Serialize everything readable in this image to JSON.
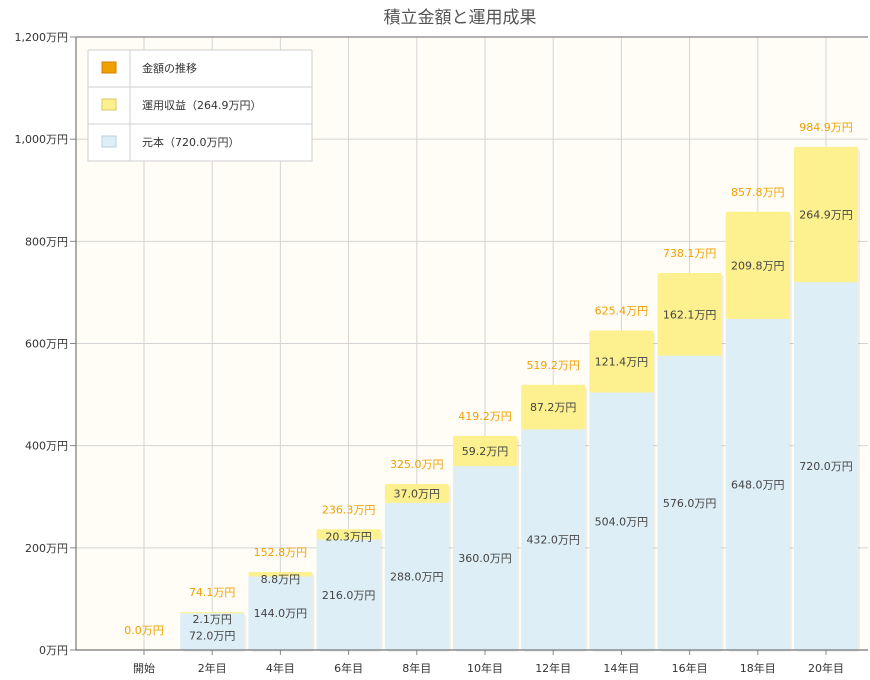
{
  "chart_data": {
    "type": "bar",
    "stacked": true,
    "title": "積立金額と運用成果",
    "categories": [
      "開始",
      "2年目",
      "4年目",
      "6年目",
      "8年目",
      "10年目",
      "12年目",
      "14年目",
      "16年目",
      "18年目",
      "20年目"
    ],
    "series": [
      {
        "name": "元本",
        "color": "#ddeef6",
        "values": [
          0,
          72.0,
          144.0,
          216.0,
          288.0,
          360.0,
          432.0,
          504.0,
          576.0,
          648.0,
          720.0
        ],
        "labels": [
          "",
          "72.0万円",
          "144.0万円",
          "216.0万円",
          "288.0万円",
          "360.0万円",
          "432.0万円",
          "504.0万円",
          "576.0万円",
          "648.0万円",
          "720.0万円"
        ]
      },
      {
        "name": "運用収益",
        "color": "#fdf08e",
        "values": [
          0,
          2.1,
          8.8,
          20.3,
          37.0,
          59.2,
          87.2,
          121.4,
          162.1,
          209.8,
          264.9
        ],
        "labels": [
          "",
          "2.1万円",
          "8.8万円",
          "20.3万円",
          "37.0万円",
          "59.2万円",
          "87.2万円",
          "121.4万円",
          "162.1万円",
          "209.8万円",
          "264.9万円"
        ]
      }
    ],
    "totals": {
      "name": "金額の推移",
      "color": "#f0a000",
      "labels": [
        "0.0万円",
        "74.1万円",
        "152.8万円",
        "236.3万円",
        "325.0万円",
        "419.2万円",
        "519.2万円",
        "625.4万円",
        "738.1万円",
        "857.8万円",
        "984.9万円"
      ]
    },
    "ylim": [
      0,
      1200
    ],
    "yticks": [
      {
        "value": 0,
        "label": "0万円"
      },
      {
        "value": 200,
        "label": "200万円"
      },
      {
        "value": 400,
        "label": "400万円"
      },
      {
        "value": 600,
        "label": "600万円"
      },
      {
        "value": 800,
        "label": "800万円"
      },
      {
        "value": 1000,
        "label": "1,000万円"
      },
      {
        "value": 1200,
        "label": "1,200万円"
      }
    ],
    "legend": {
      "position": "top-left",
      "items": [
        {
          "label": "金額の推移",
          "color": "#f0a000",
          "border": "#d08000"
        },
        {
          "label": "運用収益（264.9万円）",
          "color": "#fdf08e",
          "border": "#d8c860"
        },
        {
          "label": "元本（720.0万円）",
          "color": "#ddeef6",
          "border": "#b8d0dc"
        }
      ]
    },
    "plot_background": "#fffdf5",
    "grid": true
  }
}
